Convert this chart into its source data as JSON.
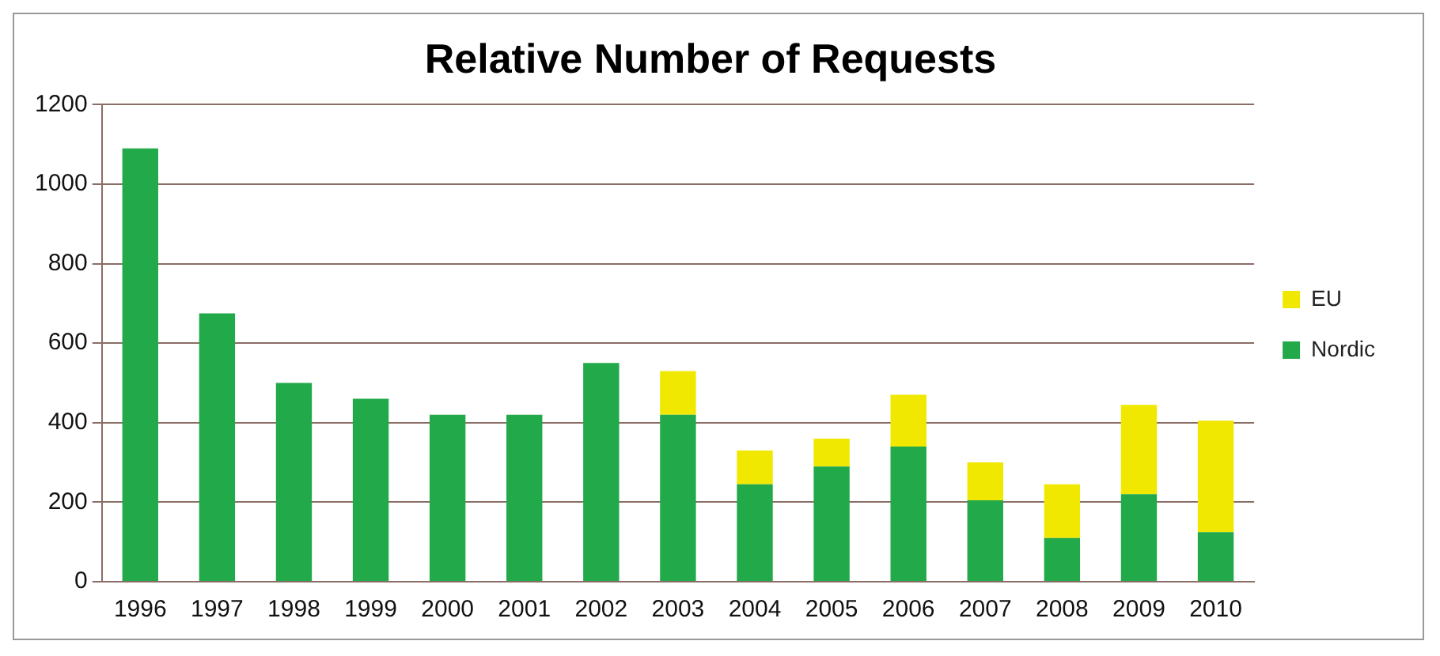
{
  "chart_data": {
    "type": "bar",
    "title": "Relative Number of Requests",
    "categories": [
      "1996",
      "1997",
      "1998",
      "1999",
      "2000",
      "2001",
      "2002",
      "2003",
      "2004",
      "2005",
      "2006",
      "2007",
      "2008",
      "2009",
      "2010"
    ],
    "series": [
      {
        "name": "Nordic",
        "color": "#22a94a",
        "values": [
          1090,
          675,
          500,
          460,
          420,
          420,
          550,
          420,
          245,
          290,
          340,
          205,
          110,
          220,
          125
        ]
      },
      {
        "name": "EU",
        "color": "#f0e800",
        "values": [
          0,
          0,
          0,
          0,
          0,
          0,
          0,
          110,
          85,
          70,
          130,
          95,
          135,
          225,
          280
        ]
      }
    ],
    "stacked": true,
    "ylim": [
      0,
      1200
    ],
    "yticks": [
      0,
      200,
      400,
      600,
      800,
      1000,
      1200
    ],
    "grid": "y",
    "legend": "right"
  }
}
